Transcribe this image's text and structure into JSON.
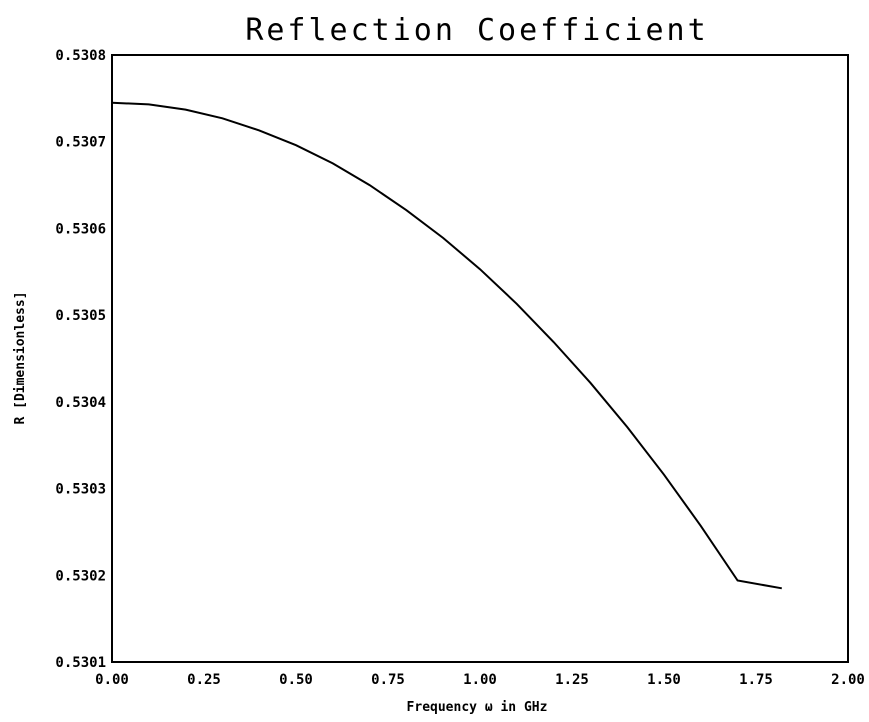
{
  "chart_data": {
    "type": "line",
    "title": "Reflection Coefficient",
    "xlabel": "Frequency ω  in GHz",
    "ylabel": "R [Dimensionless]",
    "xlim": [
      0.0,
      2.0
    ],
    "ylim": [
      0.5301,
      0.5308
    ],
    "x_ticks": [
      "0.00",
      "0.25",
      "0.50",
      "0.75",
      "1.00",
      "1.25",
      "1.50",
      "1.75",
      "2.00"
    ],
    "y_ticks": [
      "0.5301",
      "0.5302",
      "0.5303",
      "0.5304",
      "0.5305",
      "0.5306",
      "0.5307",
      "0.5308"
    ],
    "grid": false,
    "series": [
      {
        "color": "#000000",
        "x": [
          0.0,
          0.1,
          0.2,
          0.3,
          0.4,
          0.5,
          0.6,
          0.7,
          0.8,
          0.9,
          1.0,
          1.1,
          1.2,
          1.3,
          1.4,
          1.5,
          1.6,
          1.7,
          1.82
        ],
        "y": [
          0.530745,
          0.530743,
          0.530737,
          0.530727,
          0.530713,
          0.530696,
          0.530675,
          0.53065,
          0.530621,
          0.530589,
          0.530553,
          0.530513,
          0.530469,
          0.530422,
          0.530371,
          0.530316,
          0.530257,
          0.530194,
          0.530185
        ]
      }
    ]
  }
}
